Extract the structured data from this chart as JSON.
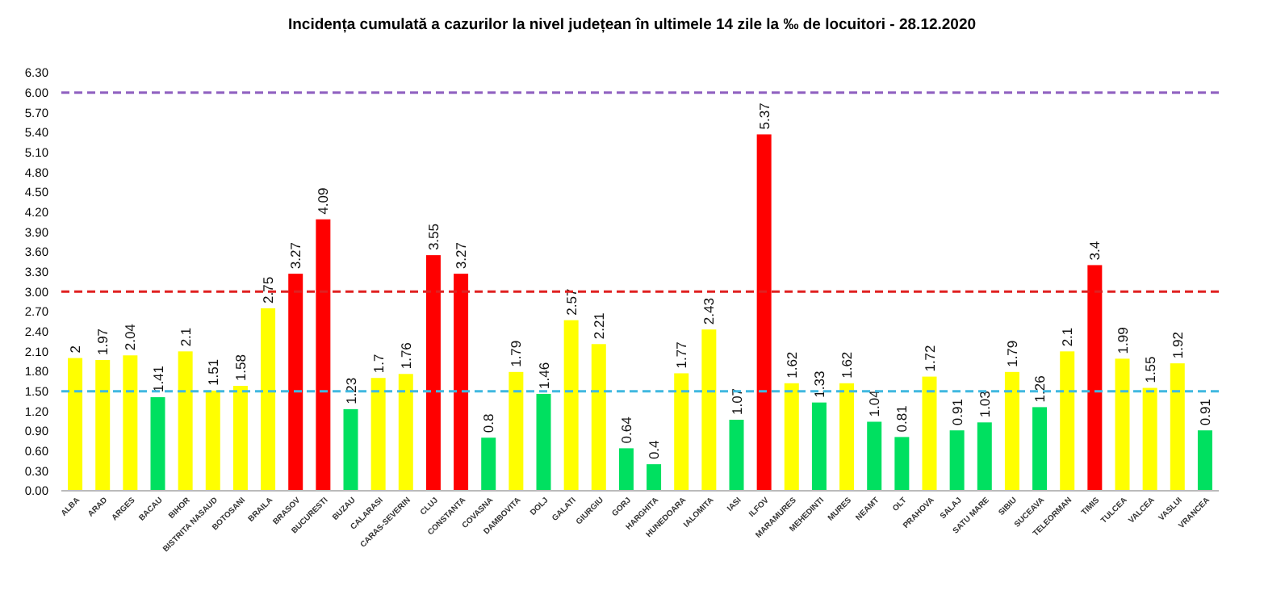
{
  "chart_data": {
    "type": "bar",
    "title": "Incidența cumulată a cazurilor la nivel județean în ultimele 14 zile la ‰ de locuitori - 28.12.2020",
    "categories": [
      "ALBA",
      "ARAD",
      "ARGES",
      "BACAU",
      "BIHOR",
      "BISTRITA NASAUD",
      "BOTOSANI",
      "BRAILA",
      "BRASOV",
      "BUCURESTI",
      "BUZAU",
      "CALARASI",
      "CARAS-SEVERIN",
      "CLUJ",
      "CONSTANTA",
      "COVASNA",
      "DAMBOVITA",
      "DOLJ",
      "GALATI",
      "GIURGIU",
      "GORJ",
      "HARGHITA",
      "HUNEDOARA",
      "IALOMITA",
      "IASI",
      "ILFOV",
      "MARAMURES",
      "MEHEDINTI",
      "MURES",
      "NEAMT",
      "OLT",
      "PRAHOVA",
      "SALAJ",
      "SATU MARE",
      "SIBIU",
      "SUCEAVA",
      "TELEORMAN",
      "TIMIS",
      "TULCEA",
      "VALCEA",
      "VASLUI",
      "VRANCEA"
    ],
    "values": [
      2,
      1.97,
      2.04,
      1.41,
      2.1,
      1.51,
      1.58,
      2.75,
      3.27,
      4.09,
      1.23,
      1.7,
      1.76,
      3.55,
      3.27,
      0.8,
      1.79,
      1.46,
      2.57,
      2.21,
      0.64,
      0.4,
      1.77,
      2.43,
      1.07,
      5.37,
      1.62,
      1.33,
      1.62,
      1.04,
      0.81,
      1.72,
      0.91,
      1.03,
      1.79,
      1.26,
      2.1,
      3.4,
      1.99,
      1.55,
      1.92,
      0.91
    ],
    "colors": [
      "#ffff00",
      "#ffff00",
      "#ffff00",
      "#00e060",
      "#ffff00",
      "#ffff00",
      "#ffff00",
      "#ffff00",
      "#ff0000",
      "#ff0000",
      "#00e060",
      "#ffff00",
      "#ffff00",
      "#ff0000",
      "#ff0000",
      "#00e060",
      "#ffff00",
      "#00e060",
      "#ffff00",
      "#ffff00",
      "#00e060",
      "#00e060",
      "#ffff00",
      "#ffff00",
      "#00e060",
      "#ff0000",
      "#ffff00",
      "#00e060",
      "#ffff00",
      "#00e060",
      "#00e060",
      "#ffff00",
      "#00e060",
      "#00e060",
      "#ffff00",
      "#00e060",
      "#ffff00",
      "#ff0000",
      "#ffff00",
      "#ffff00",
      "#ffff00",
      "#00e060"
    ],
    "ylim": [
      0,
      6.3
    ],
    "yticks": [
      {
        "value": 0,
        "label": "0.00"
      },
      {
        "value": 0.3,
        "label": "0.30"
      },
      {
        "value": 0.6,
        "label": "0.60"
      },
      {
        "value": 0.9,
        "label": "0.90"
      },
      {
        "value": 1.2,
        "label": "1.20"
      },
      {
        "value": 1.5,
        "label": "1.50"
      },
      {
        "value": 1.8,
        "label": "1.80"
      },
      {
        "value": 2.1,
        "label": "2.10"
      },
      {
        "value": 2.4,
        "label": "2.40"
      },
      {
        "value": 2.7,
        "label": "2.70"
      },
      {
        "value": 3,
        "label": "3.00"
      },
      {
        "value": 3.3,
        "label": "3.30"
      },
      {
        "value": 3.6,
        "label": "3.60"
      },
      {
        "value": 3.9,
        "label": "3.90"
      },
      {
        "value": 4.2,
        "label": "4.20"
      },
      {
        "value": 4.5,
        "label": "4.50"
      },
      {
        "value": 4.8,
        "label": "4.80"
      },
      {
        "value": 5.1,
        "label": "5.10"
      },
      {
        "value": 5.4,
        "label": "5.40"
      },
      {
        "value": 5.7,
        "label": "5.70"
      },
      {
        "value": 6,
        "label": "6.00"
      },
      {
        "value": 6.3,
        "label": "6.30"
      }
    ],
    "ref_lines": [
      {
        "axis": "y",
        "value": 6,
        "color": "#8e5fc0",
        "line_style": "dashed"
      },
      {
        "axis": "y",
        "value": 3,
        "color": "#e02020",
        "line_style": "dashed"
      },
      {
        "axis": "y",
        "value": 1.5,
        "color": "#40b8e0",
        "line_style": "dashed"
      }
    ],
    "data_labels": true
  }
}
